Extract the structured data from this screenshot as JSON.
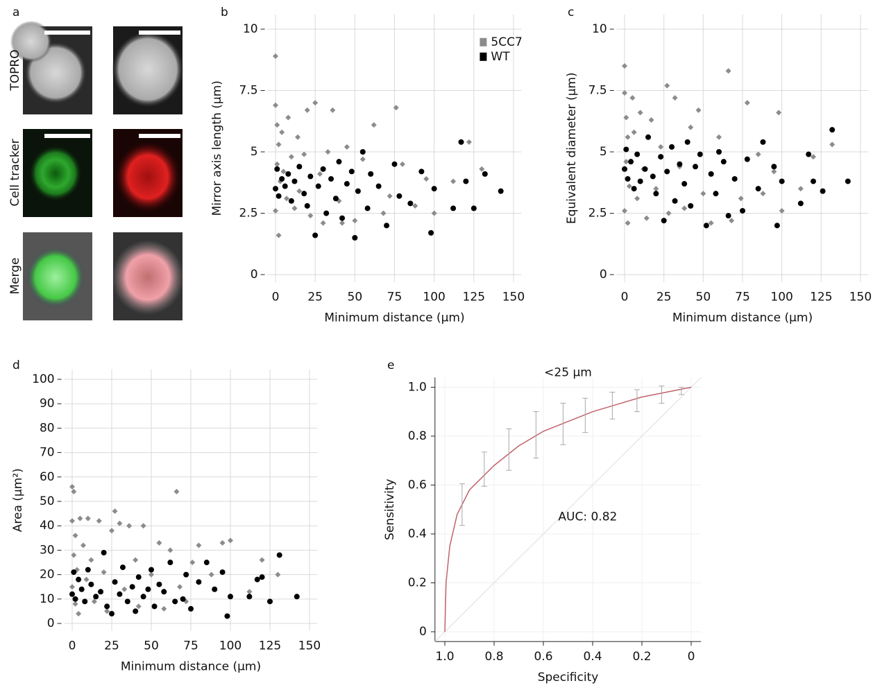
{
  "image_panel": {
    "panel": "a",
    "row_labels": [
      "TOPRO",
      "Cell tracker",
      "Merge"
    ]
  },
  "chart_data": [
    {
      "type": "scatter",
      "panel": "b",
      "xlabel": "Minimum distance (μm)",
      "ylabel": "Mirror axis length (μm)",
      "xlim": [
        -5,
        155
      ],
      "ylim": [
        -0.3,
        10.6
      ],
      "xticks": [
        0,
        25,
        50,
        75,
        100,
        125,
        150
      ],
      "yticks": [
        0,
        2.5,
        5,
        7.5,
        10
      ],
      "grid": true,
      "legend": "upper right",
      "series": [
        {
          "name": "5CC7",
          "color": "#8c8c8c",
          "marker": "diamond",
          "x": [
            0,
            0,
            1,
            2,
            1,
            3,
            0,
            2,
            4,
            5,
            7,
            8,
            10,
            12,
            14,
            15,
            18,
            20,
            22,
            25,
            28,
            30,
            33,
            36,
            40,
            42,
            45,
            50,
            55,
            62,
            68,
            72,
            76,
            80,
            88,
            95,
            100,
            112,
            122,
            130
          ],
          "values": [
            8.9,
            6.9,
            6.1,
            5.3,
            4.5,
            3.8,
            2.6,
            1.6,
            5.8,
            4.2,
            3.1,
            6.4,
            4.8,
            2.7,
            5.6,
            3.4,
            4.9,
            6.7,
            2.4,
            7.0,
            4.1,
            2.1,
            5.0,
            6.7,
            3.0,
            2.1,
            5.2,
            2.2,
            4.7,
            6.1,
            2.5,
            3.2,
            6.8,
            4.5,
            2.8,
            3.9,
            2.5,
            3.8,
            5.4,
            4.3
          ]
        },
        {
          "name": "WT",
          "color": "#000000",
          "marker": "circle",
          "x": [
            0,
            1,
            2,
            4,
            6,
            8,
            10,
            12,
            15,
            18,
            20,
            22,
            25,
            27,
            30,
            32,
            35,
            38,
            40,
            42,
            45,
            48,
            50,
            52,
            55,
            58,
            60,
            65,
            70,
            75,
            78,
            85,
            92,
            98,
            100,
            112,
            117,
            120,
            125,
            132,
            142
          ],
          "values": [
            3.5,
            4.3,
            3.2,
            3.9,
            3.6,
            4.1,
            3.0,
            3.8,
            4.4,
            3.3,
            2.8,
            4.0,
            1.6,
            3.6,
            4.3,
            2.5,
            3.9,
            3.1,
            4.6,
            2.3,
            3.7,
            4.2,
            1.5,
            3.4,
            5.0,
            2.7,
            4.1,
            3.6,
            2.0,
            4.5,
            3.2,
            2.9,
            4.2,
            1.7,
            3.5,
            2.7,
            5.4,
            3.8,
            2.7,
            4.1,
            3.4
          ]
        }
      ]
    },
    {
      "type": "scatter",
      "panel": "c",
      "xlabel": "Minimum distance (μm)",
      "ylabel": "Equivalent diameter (μm)",
      "xlim": [
        -5,
        155
      ],
      "ylim": [
        -0.3,
        10.6
      ],
      "xticks": [
        0,
        25,
        50,
        75,
        100,
        125,
        150
      ],
      "yticks": [
        0,
        2.5,
        5,
        7.5,
        10
      ],
      "grid": true,
      "series": [
        {
          "color": "#8c8c8c",
          "marker": "diamond",
          "x": [
            0,
            0,
            1,
            2,
            1,
            3,
            0,
            2,
            5,
            6,
            8,
            10,
            12,
            14,
            17,
            20,
            23,
            27,
            28,
            32,
            35,
            38,
            42,
            47,
            50,
            55,
            60,
            66,
            68,
            74,
            78,
            85,
            88,
            95,
            98,
            100,
            112,
            120,
            132
          ],
          "values": [
            8.5,
            7.4,
            6.4,
            5.6,
            4.6,
            3.6,
            2.6,
            2.1,
            7.2,
            5.8,
            3.1,
            6.6,
            4.3,
            2.3,
            6.3,
            3.5,
            5.2,
            7.7,
            2.5,
            7.2,
            4.4,
            2.7,
            6.0,
            6.7,
            3.3,
            2.1,
            5.6,
            8.3,
            2.2,
            3.1,
            7.0,
            4.9,
            3.3,
            4.2,
            6.6,
            2.6,
            3.5,
            4.8,
            5.3
          ]
        },
        {
          "color": "#000000",
          "marker": "circle",
          "x": [
            0,
            1,
            2,
            4,
            6,
            8,
            10,
            13,
            15,
            18,
            20,
            23,
            25,
            27,
            30,
            32,
            35,
            38,
            40,
            42,
            45,
            48,
            52,
            55,
            58,
            60,
            63,
            66,
            70,
            75,
            78,
            85,
            88,
            95,
            97,
            100,
            112,
            117,
            120,
            126,
            132,
            142
          ],
          "values": [
            4.3,
            5.1,
            3.9,
            4.6,
            3.5,
            4.9,
            3.8,
            4.3,
            5.6,
            4.0,
            3.3,
            4.8,
            2.2,
            4.2,
            5.2,
            3.0,
            4.5,
            3.7,
            5.4,
            2.8,
            4.4,
            4.9,
            2.0,
            4.1,
            3.3,
            5.0,
            4.6,
            2.4,
            3.9,
            2.6,
            4.7,
            3.5,
            5.4,
            4.4,
            2.0,
            3.8,
            2.9,
            4.9,
            3.8,
            3.4,
            5.9,
            3.8
          ]
        }
      ]
    },
    {
      "type": "scatter",
      "panel": "d",
      "xlabel": "Minimum distance (μm)",
      "ylabel": "Area (μm²)",
      "xlim": [
        -5,
        155
      ],
      "ylim": [
        -3,
        104
      ],
      "xticks": [
        0,
        25,
        50,
        75,
        100,
        125,
        150
      ],
      "yticks": [
        0,
        10,
        20,
        30,
        40,
        50,
        60,
        70,
        80,
        90,
        100
      ],
      "grid": true,
      "series": [
        {
          "color": "#8c8c8c",
          "marker": "diamond",
          "x": [
            0,
            1,
            0,
            2,
            1,
            3,
            0,
            2,
            4,
            5,
            7,
            9,
            10,
            12,
            14,
            17,
            20,
            22,
            25,
            27,
            30,
            33,
            36,
            40,
            42,
            45,
            50,
            55,
            58,
            62,
            66,
            68,
            72,
            76,
            80,
            88,
            95,
            100,
            112,
            120,
            130
          ],
          "values": [
            56,
            54,
            42,
            36,
            28,
            22,
            15,
            8,
            4,
            43,
            32,
            18,
            43,
            26,
            9,
            42,
            21,
            5,
            38,
            46,
            41,
            14,
            40,
            26,
            7,
            40,
            20,
            33,
            6,
            30,
            54,
            15,
            9,
            25,
            32,
            20,
            33,
            34,
            13,
            26,
            20
          ]
        },
        {
          "color": "#000000",
          "marker": "circle",
          "x": [
            0,
            1,
            2,
            4,
            6,
            8,
            10,
            12,
            15,
            18,
            20,
            22,
            25,
            27,
            30,
            32,
            35,
            38,
            40,
            42,
            45,
            48,
            50,
            52,
            55,
            58,
            62,
            65,
            70,
            72,
            75,
            80,
            85,
            90,
            95,
            98,
            100,
            112,
            117,
            120,
            125,
            131,
            142
          ],
          "values": [
            12,
            21,
            10,
            18,
            14,
            9,
            22,
            16,
            11,
            13,
            29,
            7,
            4,
            17,
            12,
            23,
            9,
            15,
            5,
            19,
            11,
            14,
            22,
            7,
            16,
            13,
            25,
            9,
            10,
            20,
            6,
            17,
            25,
            14,
            21,
            3,
            11,
            11,
            18,
            19,
            9,
            28,
            11
          ]
        }
      ]
    },
    {
      "type": "roc",
      "panel": "e",
      "title": "<25 μm",
      "annotation": "AUC: 0.82",
      "xlabel": "Specificity",
      "ylabel": "Sensitivity",
      "xlim": [
        1.04,
        -0.04
      ],
      "ylim": [
        -0.04,
        1.04
      ],
      "xticks": [
        {
          "value": 1,
          "label": "1.0"
        },
        0.8,
        0.6,
        0.4,
        0.2,
        0
      ],
      "yticks": [
        0,
        0.2,
        0.4,
        0.6,
        0.8,
        {
          "value": 1,
          "label": "1.0"
        }
      ],
      "grid": true,
      "series": [
        {
          "color": "#c0636b",
          "style": "line",
          "x": [
            1,
            0.995,
            0.98,
            0.95,
            0.9,
            0.8,
            0.7,
            0.6,
            0.5,
            0.4,
            0.3,
            0.2,
            0.1,
            0
          ],
          "values": [
            0,
            0.2,
            0.35,
            0.48,
            0.58,
            0.68,
            0.76,
            0.82,
            0.86,
            0.9,
            0.93,
            0.96,
            0.98,
            1
          ]
        },
        {
          "color": "#a8a8a8",
          "style": "errorbar",
          "x": [
            0.93,
            0.84,
            0.74,
            0.63,
            0.52,
            0.43,
            0.32,
            0.22,
            0.12,
            0.04
          ],
          "values": [
            0.52,
            0.665,
            0.745,
            0.805,
            0.85,
            0.885,
            0.925,
            0.945,
            0.97,
            0.985
          ],
          "errors": [
            0.085,
            0.07,
            0.085,
            0.095,
            0.085,
            0.07,
            0.055,
            0.045,
            0.035,
            0.015
          ]
        }
      ]
    }
  ]
}
